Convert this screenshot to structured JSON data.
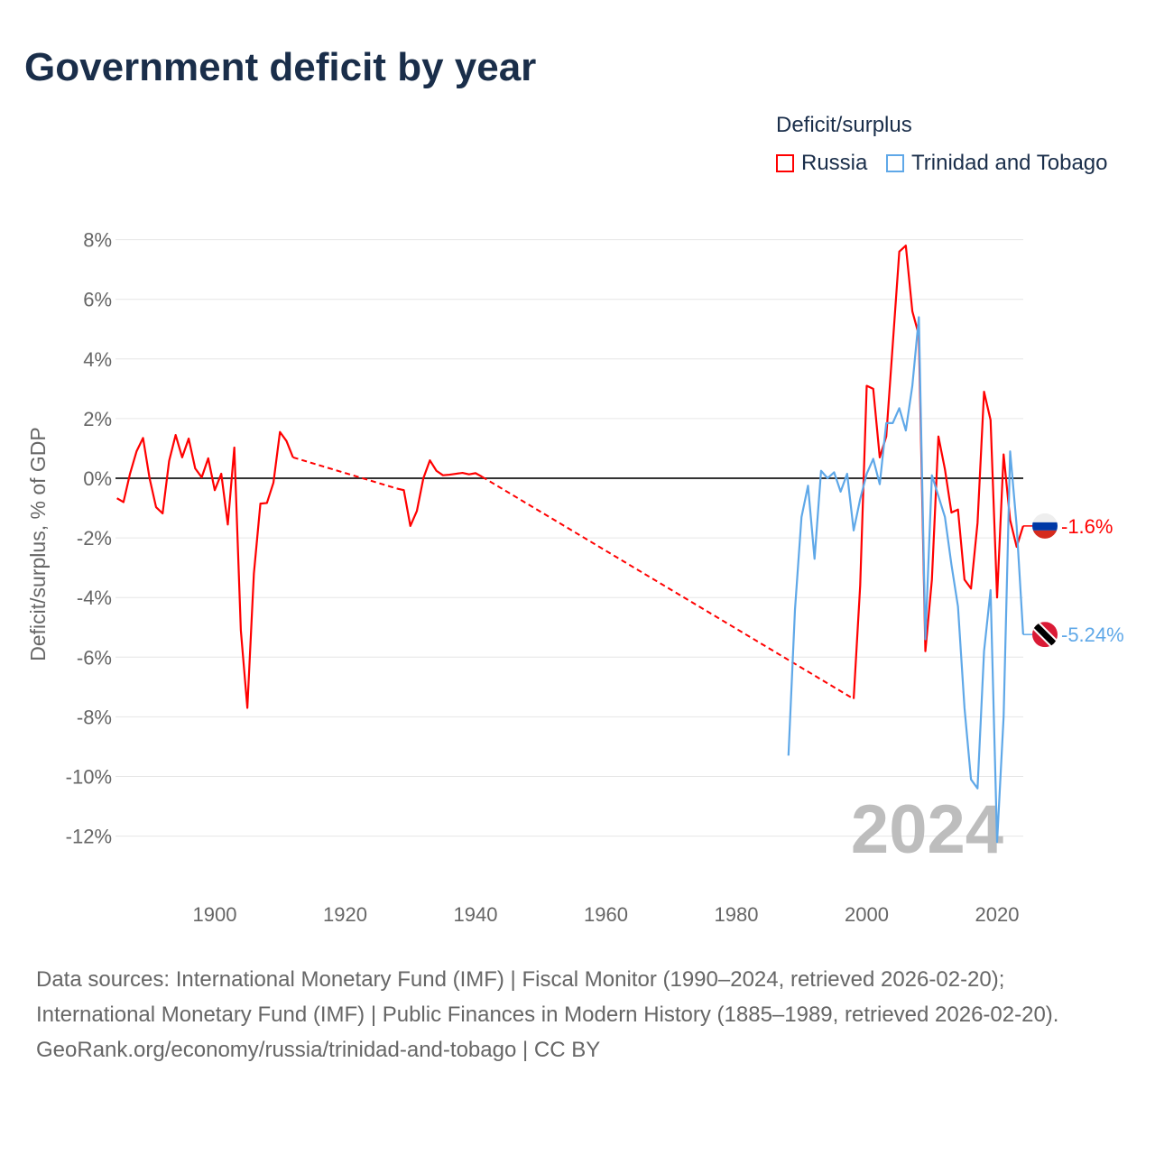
{
  "title": "Government deficit by year",
  "chart_data": {
    "type": "line",
    "title": "Government deficit by year",
    "xlabel": "",
    "ylabel": "Deficit/surplus, % of GDP",
    "xlim": [
      1885,
      2024
    ],
    "ylim": [
      -13,
      8.5
    ],
    "x_ticks": [
      1900,
      1920,
      1940,
      1960,
      1980,
      2000,
      2020
    ],
    "x_tick_labels": [
      "1900",
      "1920",
      "1940",
      "1960",
      "1980",
      "2000",
      "2020"
    ],
    "y_ticks": [
      8,
      6,
      4,
      2,
      0,
      -2,
      -4,
      -6,
      -8,
      -10,
      -12
    ],
    "y_tick_labels": [
      "8%",
      "6%",
      "4%",
      "2%",
      "0%",
      "-2%",
      "-4%",
      "-6%",
      "-8%",
      "-10%",
      "-12%"
    ],
    "grid": true,
    "legend_title": "Deficit/surplus",
    "legend_position": "top-right",
    "year_label": "2024",
    "series": [
      {
        "name": "Russia",
        "color": "#ff0000",
        "end_label": "-1.6%",
        "x": [
          1885,
          1886,
          1887,
          1888,
          1889,
          1890,
          1891,
          1892,
          1893,
          1894,
          1895,
          1896,
          1897,
          1898,
          1899,
          1900,
          1901,
          1902,
          1903,
          1904,
          1905,
          1906,
          1907,
          1908,
          1909,
          1910,
          1911,
          1912,
          1928,
          1929,
          1930,
          1931,
          1932,
          1933,
          1934,
          1935,
          1936,
          1937,
          1938,
          1939,
          1940,
          1941,
          1998,
          1999,
          2000,
          2001,
          2002,
          2003,
          2004,
          2005,
          2006,
          2007,
          2008,
          2009,
          2010,
          2011,
          2012,
          2013,
          2014,
          2015,
          2016,
          2017,
          2018,
          2019,
          2020,
          2021,
          2022,
          2023,
          2024
        ],
        "y": [
          -0.67,
          -0.8,
          0.15,
          0.9,
          1.35,
          0,
          -0.97,
          -1.18,
          0.58,
          1.45,
          0.7,
          1.33,
          0.33,
          0.03,
          0.67,
          -0.4,
          0.15,
          -1.55,
          1.03,
          -5.1,
          -7.7,
          -3.2,
          -0.85,
          -0.83,
          -0.15,
          1.55,
          1.25,
          0.7,
          -0.35,
          -0.4,
          -1.6,
          -1.1,
          0,
          0.6,
          0.25,
          0.1,
          0.12,
          0.15,
          0.18,
          0.13,
          0.17,
          0.05,
          -7.4,
          -3.6,
          3.1,
          3.0,
          0.7,
          1.4,
          4.5,
          7.6,
          7.8,
          5.6,
          4.8,
          -5.8,
          -3.4,
          1.4,
          0.3,
          -1.15,
          -1.05,
          -3.4,
          -3.7,
          -1.5,
          2.9,
          1.95,
          -4.0,
          0.8,
          -1.4,
          -2.3,
          -1.6
        ]
      },
      {
        "name": "Trinidad and Tobago",
        "color": "#5fa8e8",
        "end_label": "-5.24%",
        "x": [
          1988,
          1989,
          1990,
          1991,
          1992,
          1993,
          1994,
          1995,
          1996,
          1997,
          1998,
          1999,
          2000,
          2001,
          2002,
          2003,
          2004,
          2005,
          2006,
          2007,
          2008,
          2009,
          2010,
          2011,
          2012,
          2013,
          2014,
          2015,
          2016,
          2017,
          2018,
          2019,
          2020,
          2021,
          2022,
          2023,
          2024
        ],
        "y": [
          -9.3,
          -4.4,
          -1.3,
          -0.25,
          -2.7,
          0.25,
          0.0,
          0.2,
          -0.45,
          0.15,
          -1.75,
          -0.7,
          0.15,
          0.65,
          -0.2,
          1.85,
          1.85,
          2.35,
          1.6,
          3.1,
          5.4,
          -5.4,
          0.1,
          -0.6,
          -1.3,
          -2.9,
          -4.3,
          -7.7,
          -10.1,
          -10.4,
          -5.8,
          -3.75,
          -12.2,
          -8.0,
          0.9,
          -1.6,
          -5.24
        ]
      }
    ]
  },
  "footer": {
    "line1": "Data sources: International Monetary Fund (IMF) | Fiscal Monitor (1990–2024, retrieved 2026-02-20); International Monetary Fund (IMF) | Public Finances in Modern History (1885–1989, retrieved 2026-02-20).",
    "line2": "GeoRank.org/economy/russia/trinidad-and-tobago | CC BY"
  }
}
